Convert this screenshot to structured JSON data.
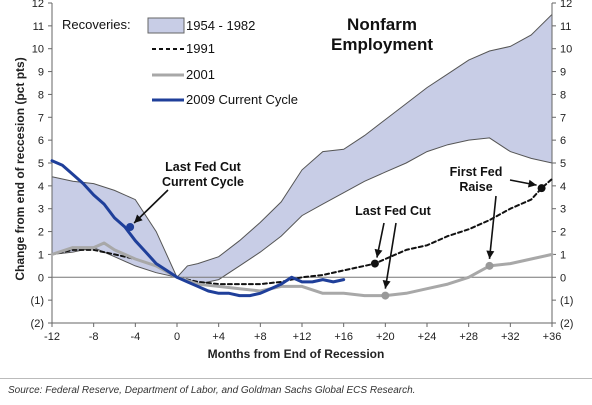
{
  "chart_data": {
    "type": "line",
    "title": "Nonfarm Employment",
    "title_lines": [
      "Nonfarm",
      "Employment"
    ],
    "xlabel": "Months from End of Recession",
    "ylabel": "Change from end of reccesion (pct pts)",
    "xlim": [
      -12,
      36
    ],
    "ylim": [
      -2,
      12
    ],
    "x_ticks": [
      -12,
      -8,
      -4,
      0,
      4,
      8,
      12,
      16,
      20,
      24,
      28,
      32,
      36
    ],
    "x_tick_labels": [
      "-12",
      "-8",
      "-4",
      "0",
      "+4",
      "+8",
      "+12",
      "+16",
      "+20",
      "+24",
      "+28",
      "+32",
      "+36"
    ],
    "y_ticks": [
      -2,
      -1,
      0,
      1,
      2,
      3,
      4,
      5,
      6,
      7,
      8,
      9,
      10,
      11,
      12
    ],
    "y_tick_labels": [
      "(2)",
      "(1)",
      "0",
      "1",
      "2",
      "3",
      "4",
      "5",
      "6",
      "7",
      "8",
      "9",
      "10",
      "11",
      "12"
    ],
    "grid": false,
    "legend_title": "Recoveries:",
    "legend_position": "top-left",
    "series": [
      {
        "name": "1954 - 1982",
        "kind": "band",
        "color": "#c8cde6",
        "x": [
          -12,
          -10,
          -8,
          -6,
          -4,
          -2,
          0,
          1,
          2,
          4,
          6,
          8,
          10,
          12,
          14,
          16,
          18,
          20,
          22,
          24,
          26,
          28,
          30,
          32,
          34,
          36
        ],
        "upper": [
          4.4,
          4.2,
          4.1,
          3.8,
          3.4,
          2.0,
          0.0,
          0.5,
          0.6,
          0.9,
          1.6,
          2.4,
          3.3,
          4.7,
          5.5,
          5.6,
          6.2,
          6.9,
          7.6,
          8.3,
          8.9,
          9.5,
          9.9,
          10.1,
          10.6,
          11.5
        ],
        "lower": [
          1.0,
          1.1,
          1.3,
          0.9,
          0.5,
          0.2,
          0.0,
          -0.2,
          -0.3,
          -0.1,
          0.5,
          1.1,
          1.8,
          2.7,
          3.2,
          3.7,
          4.2,
          4.6,
          5.0,
          5.5,
          5.8,
          6.0,
          6.1,
          5.5,
          5.2,
          5.0
        ]
      },
      {
        "name": "1991",
        "kind": "line",
        "color": "#111111",
        "dash": "4,3",
        "x": [
          -12,
          -10,
          -8,
          -6,
          -4,
          -2,
          0,
          2,
          4,
          6,
          8,
          10,
          12,
          14,
          16,
          18,
          19,
          20,
          22,
          24,
          26,
          28,
          30,
          32,
          34,
          35,
          36
        ],
        "y": [
          1.0,
          1.2,
          1.2,
          1.0,
          0.8,
          0.5,
          0.0,
          -0.2,
          -0.3,
          -0.3,
          -0.3,
          -0.2,
          0.0,
          0.1,
          0.3,
          0.5,
          0.6,
          0.8,
          1.2,
          1.4,
          1.8,
          2.1,
          2.5,
          3.0,
          3.4,
          3.9,
          4.3
        ]
      },
      {
        "name": "2001",
        "kind": "line",
        "color": "#a8a8a8",
        "x": [
          -12,
          -10,
          -8,
          -7,
          -6,
          -4,
          -2,
          0,
          2,
          4,
          6,
          8,
          10,
          12,
          14,
          16,
          18,
          20,
          22,
          24,
          26,
          28,
          30,
          32,
          34,
          36
        ],
        "y": [
          1.0,
          1.3,
          1.3,
          1.5,
          1.2,
          0.8,
          0.5,
          0.0,
          -0.3,
          -0.4,
          -0.5,
          -0.6,
          -0.4,
          -0.4,
          -0.7,
          -0.7,
          -0.8,
          -0.8,
          -0.7,
          -0.5,
          -0.3,
          0.0,
          0.5,
          0.6,
          0.8,
          1.0
        ]
      },
      {
        "name": "2009 Current Cycle",
        "kind": "line",
        "color": "#1f3f9a",
        "x": [
          -12,
          -11,
          -10,
          -9,
          -8,
          -7,
          -6,
          -5,
          -4,
          -3,
          -2,
          -1,
          0,
          1,
          2,
          3,
          4,
          5,
          6,
          7,
          8,
          9,
          10,
          11,
          12,
          13,
          14,
          15,
          16
        ],
        "y": [
          5.1,
          4.9,
          4.5,
          4.1,
          3.6,
          3.2,
          2.6,
          2.2,
          1.6,
          1.1,
          0.6,
          0.3,
          0.0,
          -0.2,
          -0.4,
          -0.6,
          -0.7,
          -0.7,
          -0.8,
          -0.8,
          -0.7,
          -0.5,
          -0.3,
          0.0,
          -0.2,
          -0.2,
          -0.1,
          -0.2,
          -0.1
        ]
      }
    ],
    "annotations": [
      {
        "lines": [
          "Last Fed Cut",
          "Current Cycle"
        ],
        "point": [
          -4.5,
          2.2
        ],
        "series": "2009 Current Cycle"
      },
      {
        "lines": [
          "Last Fed Cut"
        ],
        "point": [
          19,
          0.6
        ],
        "point2": [
          20,
          -0.8
        ],
        "series": "1991"
      },
      {
        "lines": [
          "First Fed",
          "Raise"
        ],
        "point": [
          35,
          3.9
        ],
        "point2": [
          30,
          0.5
        ],
        "series": "1991"
      }
    ]
  },
  "source_note": "Source: Federal Reserve, Department of Labor, and Goldman Sachs Global ECS Research."
}
